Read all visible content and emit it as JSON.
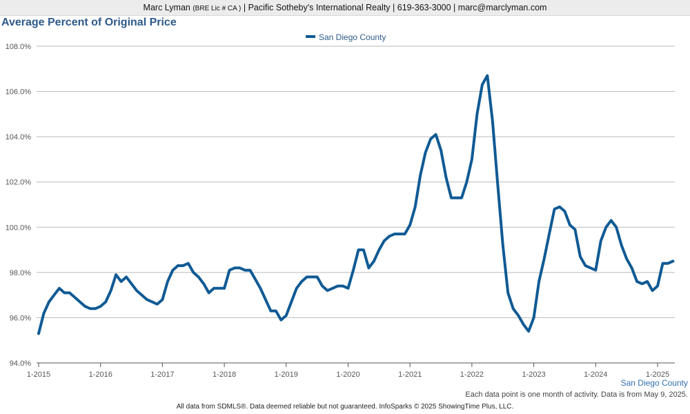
{
  "header": {
    "agent_name": "Marc Lyman",
    "license": "(BRE Lic # CA )",
    "rest": "| Pacific Sotheby's International Realty | 619-363-3000 | marc@marclyman.com"
  },
  "chart_data": {
    "type": "line",
    "title": "Average Percent of Original Price",
    "ylim": [
      94.0,
      108.0
    ],
    "y_ticks": [
      "94.0%",
      "96.0%",
      "98.0%",
      "100.0%",
      "102.0%",
      "104.0%",
      "106.0%",
      "108.0%"
    ],
    "x_tick_labels": [
      "1-2015",
      "1-2016",
      "1-2017",
      "1-2018",
      "1-2019",
      "1-2020",
      "1-2021",
      "1-2022",
      "1-2023",
      "1-2024",
      "1-2025"
    ],
    "x_start": "2015-01",
    "x_end": "2025-04",
    "grid": true,
    "legend": "top-center",
    "series": [
      {
        "name": "San Diego County",
        "color": "#0f5a94",
        "values": [
          95.3,
          96.2,
          96.7,
          97.0,
          97.3,
          97.1,
          97.1,
          96.9,
          96.7,
          96.5,
          96.4,
          96.4,
          96.5,
          96.7,
          97.2,
          97.9,
          97.6,
          97.8,
          97.5,
          97.2,
          97.0,
          96.8,
          96.7,
          96.6,
          96.8,
          97.6,
          98.1,
          98.3,
          98.3,
          98.4,
          98.0,
          97.8,
          97.5,
          97.1,
          97.3,
          97.3,
          97.3,
          98.1,
          98.2,
          98.2,
          98.1,
          98.1,
          97.7,
          97.3,
          96.8,
          96.3,
          96.3,
          95.9,
          96.1,
          96.7,
          97.3,
          97.6,
          97.8,
          97.8,
          97.8,
          97.4,
          97.2,
          97.3,
          97.4,
          97.4,
          97.3,
          98.1,
          99.0,
          99.0,
          98.2,
          98.5,
          99.0,
          99.4,
          99.6,
          99.7,
          99.7,
          99.7,
          100.1,
          100.9,
          102.3,
          103.3,
          103.9,
          104.1,
          103.4,
          102.2,
          101.3,
          101.3,
          101.3,
          102.0,
          103.0,
          105.0,
          106.3,
          106.7,
          104.7,
          101.9,
          99.2,
          97.1,
          96.4,
          96.1,
          95.7,
          95.4,
          96.0,
          97.6,
          98.6,
          99.7,
          100.8,
          100.9,
          100.7,
          100.1,
          99.9,
          98.7,
          98.3,
          98.2,
          98.1,
          99.4,
          100.0,
          100.3,
          100.0,
          99.2,
          98.6,
          98.2,
          97.6,
          97.5,
          97.6,
          97.2,
          97.4,
          98.4,
          98.4,
          98.5
        ]
      }
    ]
  },
  "captions": {
    "region": "San Diego County",
    "note": "Each data point is one month of activity. Data is from May 9, 2025.",
    "footer": "All data from SDMLS®. Data deemed reliable but not guaranteed. InfoSparks © 2025 ShowingTime Plus, LLC."
  }
}
